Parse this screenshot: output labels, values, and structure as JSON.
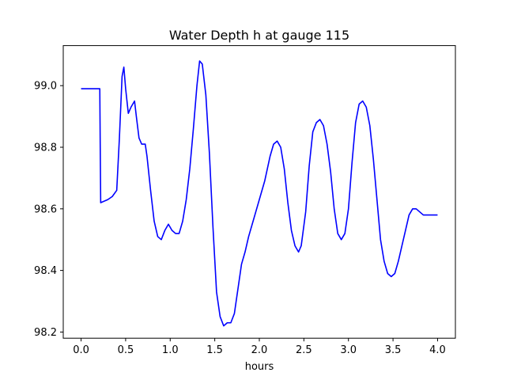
{
  "chart_data": {
    "type": "line",
    "title": "Water Depth h at gauge 115",
    "xlabel": "hours",
    "ylabel": "",
    "xlim": [
      -0.2,
      4.2
    ],
    "ylim": [
      98.18,
      99.13
    ],
    "xticks": [
      0.0,
      0.5,
      1.0,
      1.5,
      2.0,
      2.5,
      3.0,
      3.5,
      4.0
    ],
    "xtick_labels": [
      "0.0",
      "0.5",
      "1.0",
      "1.5",
      "2.0",
      "2.5",
      "3.0",
      "3.5",
      "4.0"
    ],
    "yticks": [
      98.2,
      98.4,
      98.6,
      98.8,
      99.0
    ],
    "ytick_labels": [
      "98.2",
      "98.4",
      "98.6",
      "98.8",
      "99.0"
    ],
    "grid": false,
    "series": [
      {
        "color": "#0000ff",
        "x": [
          0.0,
          0.1,
          0.21,
          0.215,
          0.22,
          0.3,
          0.35,
          0.4,
          0.43,
          0.46,
          0.48,
          0.5,
          0.53,
          0.56,
          0.6,
          0.62,
          0.65,
          0.68,
          0.72,
          0.74,
          0.78,
          0.82,
          0.86,
          0.9,
          0.94,
          0.98,
          1.02,
          1.06,
          1.1,
          1.14,
          1.18,
          1.22,
          1.26,
          1.3,
          1.33,
          1.36,
          1.4,
          1.44,
          1.48,
          1.52,
          1.56,
          1.6,
          1.64,
          1.68,
          1.72,
          1.76,
          1.8,
          1.84,
          1.88,
          1.94,
          2.0,
          2.06,
          2.12,
          2.16,
          2.2,
          2.24,
          2.28,
          2.32,
          2.36,
          2.4,
          2.44,
          2.47,
          2.52,
          2.56,
          2.6,
          2.64,
          2.68,
          2.72,
          2.76,
          2.8,
          2.84,
          2.88,
          2.92,
          2.96,
          3.0,
          3.04,
          3.08,
          3.12,
          3.16,
          3.2,
          3.24,
          3.28,
          3.32,
          3.36,
          3.4,
          3.44,
          3.48,
          3.52,
          3.56,
          3.6,
          3.64,
          3.68,
          3.72,
          3.76,
          3.8,
          3.84,
          3.88,
          3.92,
          3.96,
          4.0
        ],
        "y": [
          98.99,
          98.99,
          98.99,
          98.8,
          98.62,
          98.63,
          98.64,
          98.66,
          98.83,
          99.03,
          99.06,
          98.99,
          98.91,
          98.93,
          98.95,
          98.9,
          98.83,
          98.81,
          98.81,
          98.77,
          98.66,
          98.56,
          98.51,
          98.5,
          98.53,
          98.55,
          98.53,
          98.52,
          98.52,
          98.56,
          98.63,
          98.73,
          98.86,
          99.0,
          99.08,
          99.07,
          98.97,
          98.78,
          98.54,
          98.33,
          98.25,
          98.22,
          98.23,
          98.23,
          98.26,
          98.34,
          98.42,
          98.46,
          98.51,
          98.57,
          98.63,
          98.69,
          98.77,
          98.81,
          98.82,
          98.8,
          98.73,
          98.62,
          98.53,
          98.48,
          98.46,
          98.48,
          98.59,
          98.74,
          98.85,
          98.88,
          98.89,
          98.87,
          98.81,
          98.72,
          98.6,
          98.52,
          98.5,
          98.52,
          98.6,
          98.75,
          98.88,
          98.94,
          98.95,
          98.93,
          98.87,
          98.76,
          98.63,
          98.5,
          98.43,
          98.39,
          98.38,
          98.39,
          98.43,
          98.48,
          98.53,
          98.58,
          98.6,
          98.6,
          98.59,
          98.58,
          98.58,
          98.58,
          98.58,
          98.58
        ]
      }
    ]
  }
}
